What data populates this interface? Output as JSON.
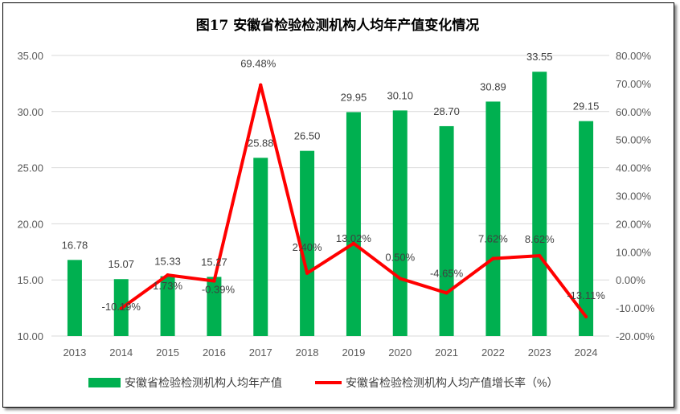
{
  "chart_data": {
    "type": "bar+line",
    "title": "图17 安徽省检验检测机构人均年产值变化情况",
    "categories": [
      "2013",
      "2014",
      "2015",
      "2016",
      "2017",
      "2018",
      "2019",
      "2020",
      "2021",
      "2022",
      "2023",
      "2024"
    ],
    "series": [
      {
        "name": "安徽省检验检测机构人均年产值",
        "type": "bar",
        "axis": "left",
        "color": "#00B050",
        "values": [
          16.78,
          15.07,
          15.33,
          15.27,
          25.88,
          26.5,
          29.95,
          30.1,
          28.7,
          30.89,
          33.55,
          29.15
        ],
        "labels": [
          "16.78",
          "15.07",
          "15.33",
          "15.27",
          "25.88",
          "26.50",
          "29.95",
          "30.10",
          "28.70",
          "30.89",
          "33.55",
          "29.15"
        ]
      },
      {
        "name": "安徽省检验检测机构人均产值增长率（%）",
        "type": "line",
        "axis": "right",
        "color": "#FF0000",
        "values": [
          null,
          -10.19,
          1.73,
          -0.39,
          69.48,
          2.4,
          13.02,
          0.5,
          -4.65,
          7.62,
          8.62,
          -13.11
        ],
        "labels": [
          "",
          "-10.19%",
          "1.73%",
          "-0.39%",
          "69.48%",
          "2.40%",
          "13.02%",
          "0.50%",
          "-4.65%",
          "7.62%",
          "8.62%",
          "-13.11%"
        ]
      }
    ],
    "left_axis": {
      "ylim": [
        10,
        35
      ],
      "ticks": [
        "10.00",
        "15.00",
        "20.00",
        "25.00",
        "30.00",
        "35.00"
      ]
    },
    "right_axis": {
      "ylim": [
        -20,
        80
      ],
      "ticks": [
        "-20.00%",
        "-10.00%",
        "0.00%",
        "10.00%",
        "20.00%",
        "30.00%",
        "40.00%",
        "50.00%",
        "60.00%",
        "70.00%",
        "80.00%"
      ]
    },
    "grid": true,
    "legend": "bottom"
  }
}
